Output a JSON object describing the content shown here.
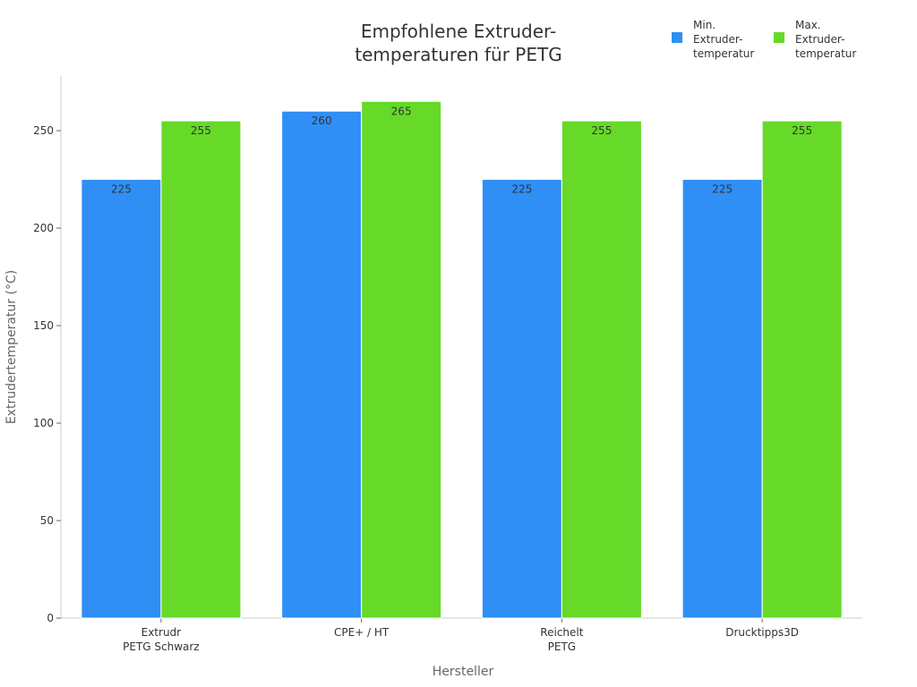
{
  "chart_data": {
    "type": "bar",
    "title_lines": [
      "Empfohlene Extruder-",
      "temperaturen für PETG"
    ],
    "xlabel": "Hersteller",
    "ylabel": "Extrudertemperatur (°C)",
    "ylim": [
      0,
      278
    ],
    "yticks": [
      0,
      50,
      100,
      150,
      200,
      250
    ],
    "categories": [
      [
        "Extrudr",
        "PETG Schwarz"
      ],
      [
        "CPE+ / HT"
      ],
      [
        "Reichelt",
        "PETG"
      ],
      [
        "Drucktipps3D"
      ]
    ],
    "series": [
      {
        "name_lines": [
          "Min.",
          "Extruder-",
          "temperatur"
        ],
        "color": "#2f8ff5",
        "values": [
          225,
          260,
          225,
          225
        ]
      },
      {
        "name_lines": [
          "Max.",
          "Extruder-",
          "temperatur"
        ],
        "color": "#66d929",
        "values": [
          255,
          265,
          255,
          255
        ]
      }
    ],
    "legend_position": "top-right",
    "grid": false
  }
}
